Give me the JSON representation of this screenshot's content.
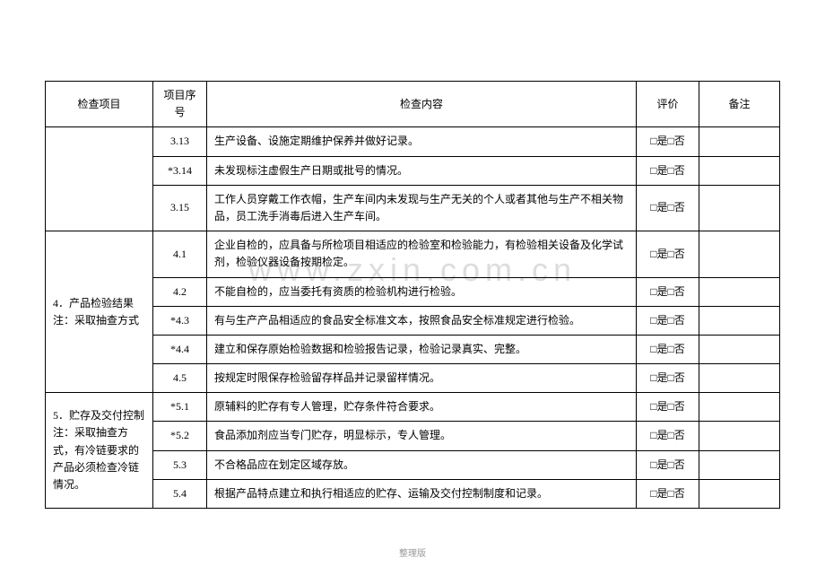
{
  "watermark": "www.zxin.com.cn",
  "footer": "整理版",
  "headers": {
    "item": "检查项目",
    "num": "项目序号",
    "content": "检查内容",
    "eval": "评价",
    "note": "备注"
  },
  "eval_text": "□是□否",
  "groups": [
    {
      "item_label": "",
      "item_rowspan": 3,
      "show_item_cell": false,
      "rows": [
        {
          "num": "3.13",
          "content": "生产设备、设施定期维护保养并做好记录。"
        },
        {
          "num": "*3.14",
          "content": "未发现标注虚假生产日期或批号的情况。"
        },
        {
          "num": "3.15",
          "content": "工作人员穿戴工作衣帽，生产车间内未发现与生产无关的个人或者其他与生产不相关物品，员工洗手消毒后进入生产车间。"
        }
      ]
    },
    {
      "item_label": "4．产品检验结果注：采取抽查方式",
      "item_rowspan": 5,
      "show_item_cell": true,
      "rows": [
        {
          "num": "4.1",
          "content": "企业自检的，应具备与所检项目相适应的检验室和检验能力，有检验相关设备及化学试剂，检验仪器设备按期检定。"
        },
        {
          "num": "4.2",
          "content": "不能自检的，应当委托有资质的检验机构进行检验。"
        },
        {
          "num": "*4.3",
          "content": "有与生产产品相适应的食品安全标准文本，按照食品安全标准规定进行检验。"
        },
        {
          "num": "*4.4",
          "content": "建立和保存原始检验数据和检验报告记录，检验记录真实、完整。"
        },
        {
          "num": "4.5",
          "content": "按规定时限保存检验留存样品并记录留样情况。"
        }
      ]
    },
    {
      "item_label": "5．贮存及交付控制注：采取抽查方式，有冷链要求的产品必须检查冷链情况。",
      "item_rowspan": 4,
      "show_item_cell": true,
      "rows": [
        {
          "num": "*5.1",
          "content": "原辅料的贮存有专人管理，贮存条件符合要求。"
        },
        {
          "num": "*5.2",
          "content": "食品添加剂应当专门贮存，明显标示，专人管理。"
        },
        {
          "num": "5.3",
          "content": "不合格品应在划定区域存放。"
        },
        {
          "num": "5.4",
          "content": "根据产品特点建立和执行相适应的贮存、运输及交付控制制度和记录。"
        }
      ]
    }
  ]
}
